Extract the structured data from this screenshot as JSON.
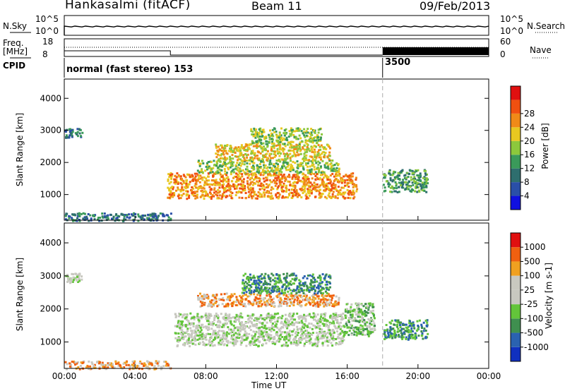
{
  "header": {
    "station": "Hankasalmi (fitACF)",
    "beam": "Beam 11",
    "date": "09/Feb/2013"
  },
  "top_panels": {
    "nsky_label": "N.Sky",
    "nsearch_label": "N.Search",
    "freq_label_line1": "Freq.",
    "freq_label_line2": "[MHz]",
    "nave_label": "Nave",
    "cpid_label": "CPID",
    "ticks": {
      "sky_top": "10^5",
      "sky_bottom": "10^0",
      "search_top": "10^5",
      "search_bottom": "10^0",
      "freq_top": "18",
      "freq_bottom": "8",
      "nave_top": "60",
      "nave_bottom": "0"
    },
    "cpid_modes": [
      {
        "label": "normal (fast stereo) 153",
        "start_hour": 0
      },
      {
        "label": "3500",
        "start_hour": 18
      }
    ]
  },
  "chart_data": [
    {
      "type": "heatmap",
      "quantity": "Power",
      "ylabel": "Slant Range [km]",
      "ylim": [
        200,
        4600
      ],
      "yticks": [
        1000,
        2000,
        3000,
        4000
      ],
      "xlim": [
        0,
        24
      ],
      "colorbar": {
        "label": "Power [dB]",
        "ticks": [
          "4",
          "8",
          "12",
          "16",
          "20",
          "24",
          "28"
        ],
        "colors": [
          "#1010e0",
          "#2a4fa8",
          "#2e6e6e",
          "#3a9a5a",
          "#8cc83c",
          "#e8c820",
          "#f08a18",
          "#f05010",
          "#e01010"
        ]
      },
      "regions": [
        {
          "t0": 0.0,
          "t1": 1.0,
          "r0": 2800,
          "r1": 3100,
          "level": 2
        },
        {
          "t0": 5.8,
          "t1": 16.5,
          "r0": 900,
          "r1": 1700,
          "level": 6
        },
        {
          "t0": 7.5,
          "t1": 15.5,
          "r0": 1700,
          "r1": 2100,
          "level": 4
        },
        {
          "t0": 8.5,
          "t1": 15.0,
          "r0": 2100,
          "r1": 2600,
          "level": 5
        },
        {
          "t0": 10.5,
          "t1": 14.5,
          "r0": 2600,
          "r1": 3100,
          "level": 4
        },
        {
          "t0": 18.0,
          "t1": 20.5,
          "r0": 1100,
          "r1": 1800,
          "level": 3
        },
        {
          "t0": 0.0,
          "t1": 6.0,
          "r0": 200,
          "r1": 450,
          "level": 2
        }
      ]
    },
    {
      "type": "heatmap",
      "quantity": "Velocity",
      "xlabel": "Time UT",
      "ylabel": "Slant Range [km]",
      "ylim": [
        200,
        4600
      ],
      "yticks": [
        1000,
        2000,
        3000,
        4000
      ],
      "xlim": [
        0,
        24
      ],
      "xticks": [
        "00:00",
        "04:00",
        "08:00",
        "12:00",
        "16:00",
        "20:00",
        "00:00"
      ],
      "colorbar": {
        "label": "Velocity [m s-1]",
        "ticks": [
          "1000",
          "500",
          "100",
          "25",
          "-25",
          "-100",
          "-500",
          "-1000"
        ],
        "colors": [
          "#1030c0",
          "#2a62b0",
          "#3f8f4f",
          "#63c53a",
          "#c8c8c0",
          "#c8c8c0",
          "#f0a020",
          "#f06010",
          "#e01010"
        ]
      },
      "regions": [
        {
          "t0": 0.0,
          "t1": 1.0,
          "r0": 2800,
          "r1": 3100,
          "level": 4
        },
        {
          "t0": 6.2,
          "t1": 15.8,
          "r0": 900,
          "r1": 1900,
          "level": 4
        },
        {
          "t0": 7.5,
          "t1": 15.5,
          "r0": 2100,
          "r1": 2500,
          "level": 6
        },
        {
          "t0": 10.0,
          "t1": 15.0,
          "r0": 2500,
          "r1": 3100,
          "level": 2
        },
        {
          "t0": 15.8,
          "t1": 17.5,
          "r0": 1200,
          "r1": 2200,
          "level": 3
        },
        {
          "t0": 18.0,
          "t1": 20.5,
          "r0": 1100,
          "r1": 1700,
          "level": 2
        },
        {
          "t0": 0.0,
          "t1": 6.0,
          "r0": 200,
          "r1": 450,
          "level": 6
        }
      ]
    }
  ]
}
